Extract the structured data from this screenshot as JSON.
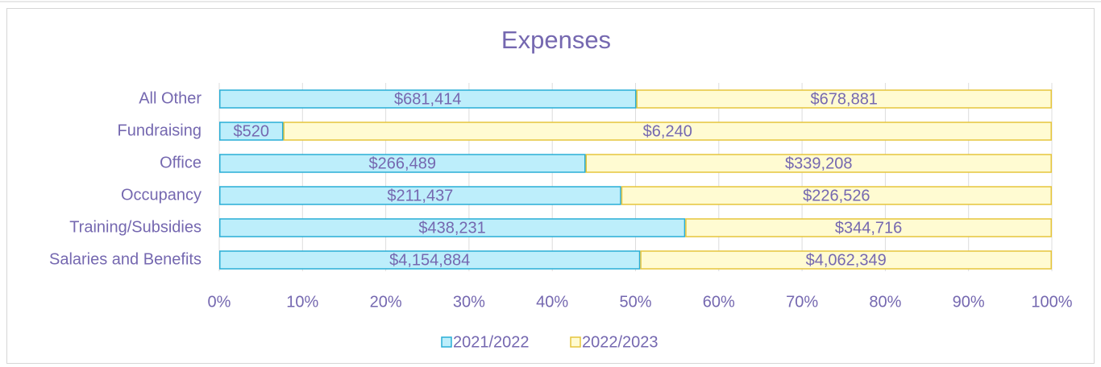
{
  "chart_data": {
    "type": "bar",
    "orientation": "horizontal",
    "stacking": "percent",
    "title": "Expenses",
    "categories": [
      "All Other",
      "Fundraising",
      "Office",
      "Occupancy",
      "Training/Subsidies",
      "Salaries and Benefits"
    ],
    "series": [
      {
        "name": "2021/2022",
        "color": "#bdeefb",
        "edge": "#29aed6",
        "values": [
          681414,
          520,
          266489,
          211437,
          438231,
          4154884
        ],
        "value_labels": [
          "$681,414",
          "$520",
          "$266,489",
          "$211,437",
          "$438,231",
          "$4,154,884"
        ]
      },
      {
        "name": "2022/2023",
        "color": "#fffbd2",
        "edge": "#e6c53c",
        "values": [
          678881,
          6240,
          339208,
          226526,
          344716,
          4062349
        ],
        "value_labels": [
          "$678,881",
          "$6,240",
          "$339,208",
          "$226,526",
          "$344,716",
          "$4,062,349"
        ]
      }
    ],
    "xlim": [
      0,
      100
    ],
    "xticks": [
      {
        "value": 0,
        "label": "0%"
      },
      {
        "value": 10,
        "label": "10%"
      },
      {
        "value": 20,
        "label": "20%"
      },
      {
        "value": 30,
        "label": "30%"
      },
      {
        "value": 40,
        "label": "40%"
      },
      {
        "value": 50,
        "label": "50%"
      },
      {
        "value": 60,
        "label": "60%"
      },
      {
        "value": 70,
        "label": "70%"
      },
      {
        "value": 80,
        "label": "80%"
      },
      {
        "value": 90,
        "label": "90%"
      },
      {
        "value": 100,
        "label": "100%"
      }
    ],
    "grid": true,
    "legend": "bottom"
  }
}
